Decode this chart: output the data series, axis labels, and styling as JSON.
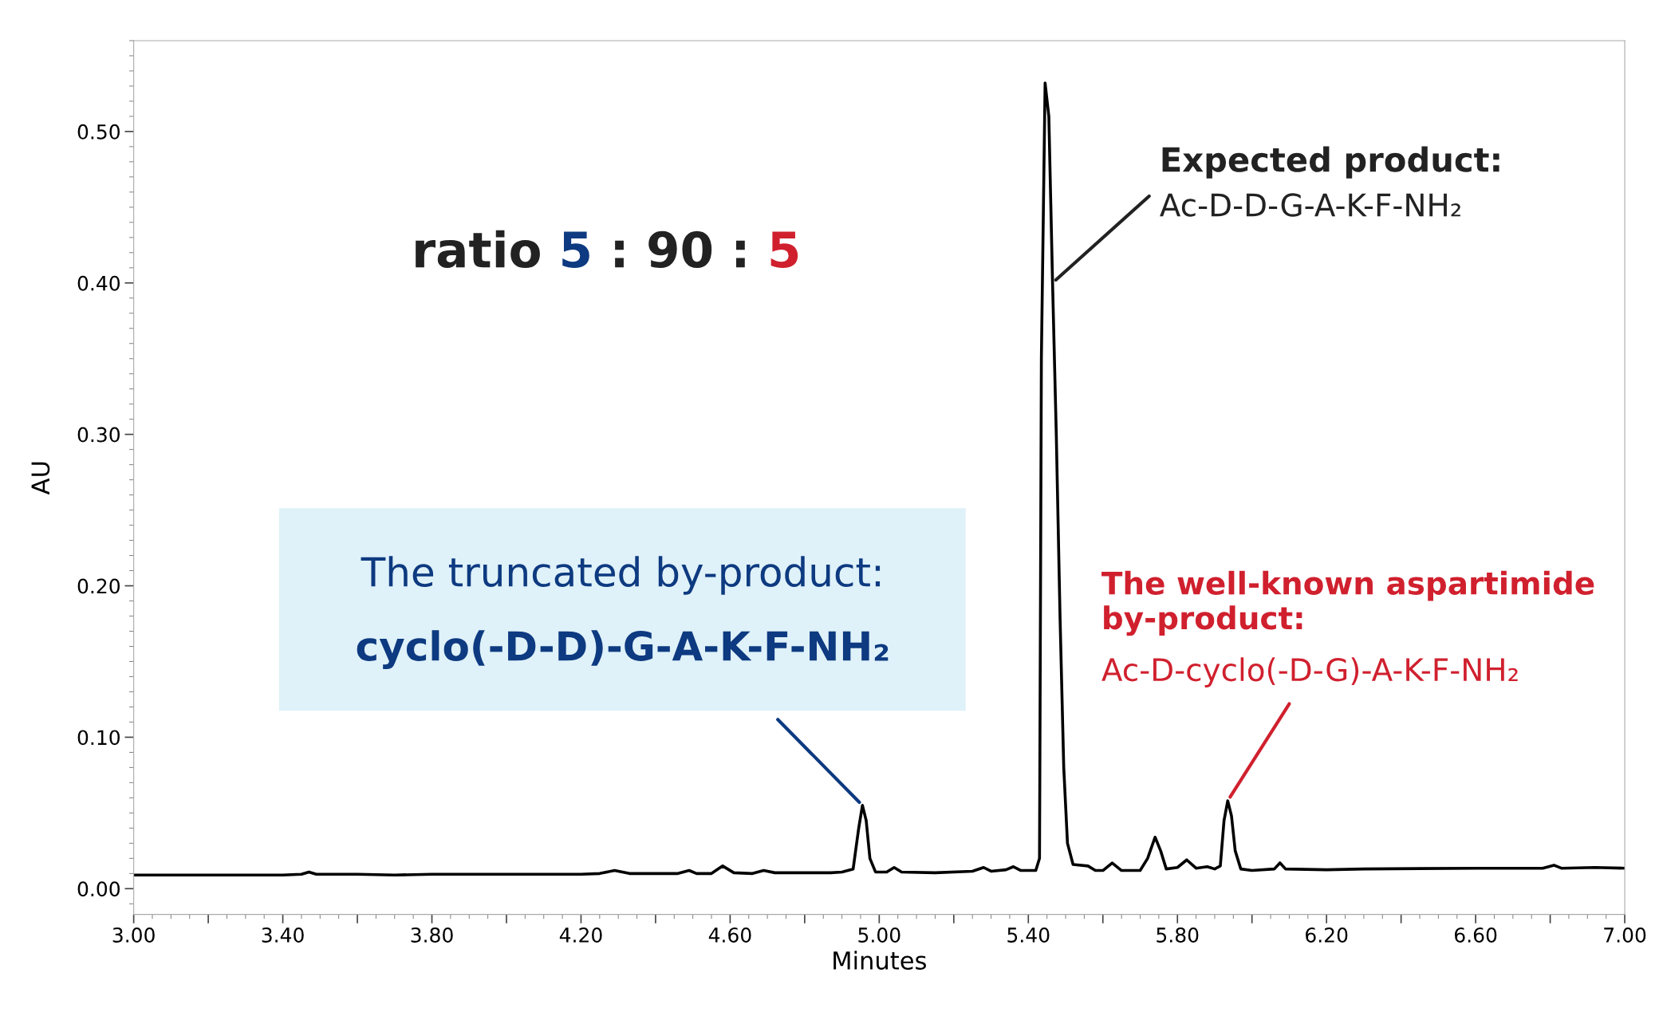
{
  "chart_data": {
    "type": "line",
    "xlabel": "Minutes",
    "ylabel": "AU",
    "x": [
      3.0,
      3.4,
      3.45,
      3.47,
      3.49,
      3.6,
      3.7,
      3.8,
      4.2,
      4.25,
      4.29,
      4.33,
      4.46,
      4.49,
      4.51,
      4.55,
      4.58,
      4.61,
      4.66,
      4.69,
      4.72,
      4.87,
      4.9,
      4.93,
      4.945,
      4.955,
      4.965,
      4.975,
      4.99,
      5.02,
      5.04,
      5.06,
      5.15,
      5.25,
      5.28,
      5.3,
      5.34,
      5.36,
      5.38,
      5.42,
      5.43,
      5.435,
      5.445,
      5.455,
      5.465,
      5.475,
      5.485,
      5.495,
      5.505,
      5.52,
      5.56,
      5.58,
      5.6,
      5.625,
      5.65,
      5.7,
      5.72,
      5.74,
      5.755,
      5.77,
      5.8,
      5.825,
      5.85,
      5.88,
      5.9,
      5.915,
      5.925,
      5.935,
      5.945,
      5.955,
      5.97,
      6.0,
      6.06,
      6.075,
      6.09,
      6.2,
      6.3,
      6.6,
      6.78,
      6.81,
      6.83,
      6.92,
      7.0
    ],
    "series": [
      {
        "color": "#000000",
        "values": [
          0.009,
          0.009,
          0.0095,
          0.011,
          0.0095,
          0.0095,
          0.009,
          0.0095,
          0.0095,
          0.01,
          0.012,
          0.01,
          0.01,
          0.012,
          0.01,
          0.01,
          0.015,
          0.0105,
          0.01,
          0.012,
          0.0105,
          0.0105,
          0.011,
          0.013,
          0.04,
          0.055,
          0.045,
          0.02,
          0.011,
          0.011,
          0.014,
          0.011,
          0.0105,
          0.0115,
          0.014,
          0.0115,
          0.0125,
          0.0145,
          0.012,
          0.012,
          0.02,
          0.35,
          0.532,
          0.51,
          0.4,
          0.3,
          0.18,
          0.08,
          0.03,
          0.016,
          0.015,
          0.012,
          0.012,
          0.017,
          0.012,
          0.012,
          0.02,
          0.034,
          0.025,
          0.013,
          0.014,
          0.019,
          0.0135,
          0.0145,
          0.013,
          0.015,
          0.045,
          0.058,
          0.048,
          0.025,
          0.013,
          0.012,
          0.013,
          0.017,
          0.013,
          0.0125,
          0.013,
          0.0135,
          0.0135,
          0.0155,
          0.0135,
          0.014,
          0.0135
        ]
      }
    ],
    "xlim": [
      3.0,
      7.0
    ],
    "xticks": [
      {
        "value": 3.0,
        "label": "3.00"
      },
      {
        "value": 3.2,
        "label": null
      },
      {
        "value": 3.4,
        "label": "3.40"
      },
      {
        "value": 3.6,
        "label": null
      },
      {
        "value": 3.8,
        "label": "3.80"
      },
      {
        "value": 4.0,
        "label": null
      },
      {
        "value": 4.2,
        "label": "4.20"
      },
      {
        "value": 4.4,
        "label": null
      },
      {
        "value": 4.6,
        "label": "4.60"
      },
      {
        "value": 4.8,
        "label": null
      },
      {
        "value": 5.0,
        "label": "5.00"
      },
      {
        "value": 5.2,
        "label": null
      },
      {
        "value": 5.4,
        "label": "5.40"
      },
      {
        "value": 5.6,
        "label": null
      },
      {
        "value": 5.8,
        "label": "5.80"
      },
      {
        "value": 6.0,
        "label": null
      },
      {
        "value": 6.2,
        "label": "6.20"
      },
      {
        "value": 6.4,
        "label": null
      },
      {
        "value": 6.6,
        "label": "6.60"
      },
      {
        "value": 6.8,
        "label": null
      },
      {
        "value": 7.0,
        "label": "7.00"
      }
    ],
    "ylim": [
      -0.017,
      0.56
    ],
    "yticks": [
      {
        "value": 0.0,
        "label": "0.00"
      },
      {
        "value": 0.1,
        "label": "0.10"
      },
      {
        "value": 0.2,
        "label": "0.20"
      },
      {
        "value": 0.3,
        "label": "0.30"
      },
      {
        "value": 0.4,
        "label": "0.40"
      },
      {
        "value": 0.5,
        "label": "0.50"
      }
    ],
    "grid": false,
    "legend": false,
    "marker": "none",
    "line_style": "solid",
    "annotations": [
      "ratio 5 : 90 : 5",
      "Expected product:",
      {
        "text": "Ac-D-D-G-A-K-F-NH₂",
        "x": 5.465,
        "y": 0.4
      },
      "The truncated by-product:",
      {
        "text": "cyclo(-D-D)-G-A-K-F-NH₂",
        "x": 4.955,
        "y": 0.055
      },
      "The well-known aspartimide\nby-product:",
      {
        "text": "Ac-D-cyclo(-D-G)-A-K-F-NH₂",
        "x": 5.935,
        "y": 0.058
      }
    ]
  }
}
